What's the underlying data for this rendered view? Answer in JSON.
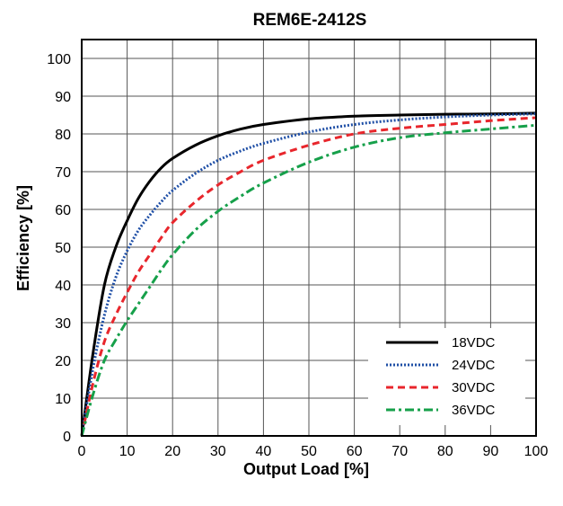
{
  "chart_data": {
    "type": "line",
    "title": "REM6E-2412S",
    "xlabel": "Output Load [%]",
    "ylabel": "Efficiency [%]",
    "xlim": [
      0,
      100
    ],
    "ylim": [
      0,
      105
    ],
    "xticks": [
      0,
      10,
      20,
      30,
      40,
      50,
      60,
      70,
      80,
      90,
      100
    ],
    "yticks": [
      0,
      10,
      20,
      30,
      40,
      50,
      60,
      70,
      80,
      90,
      100
    ],
    "grid": true,
    "legend_position": "bottom-right",
    "series": [
      {
        "name": "18VDC",
        "color": "#000000",
        "style": "solid",
        "x": [
          0,
          2.5,
          5,
          7.5,
          10,
          12.5,
          15,
          17.5,
          20,
          25,
          30,
          35,
          40,
          50,
          60,
          70,
          80,
          90,
          100
        ],
        "y": [
          0,
          22,
          40,
          50,
          57,
          63,
          67.5,
          71,
          73.5,
          77,
          79.5,
          81.3,
          82.5,
          84,
          84.7,
          85,
          85.2,
          85.3,
          85.5
        ]
      },
      {
        "name": "24VDC",
        "color": "#1f4fa6",
        "style": "dotted",
        "x": [
          0,
          2.5,
          5,
          7.5,
          10,
          12.5,
          15,
          17.5,
          20,
          25,
          30,
          35,
          40,
          50,
          60,
          70,
          80,
          90,
          100
        ],
        "y": [
          0,
          18,
          32,
          42,
          49,
          54.5,
          58.5,
          62,
          65,
          69.5,
          73,
          75.5,
          77.5,
          80.5,
          82.5,
          83.7,
          84.5,
          85,
          85.3
        ]
      },
      {
        "name": "30VDC",
        "color": "#e8262c",
        "style": "dashed",
        "x": [
          0,
          2.5,
          5,
          7.5,
          10,
          12.5,
          15,
          17.5,
          20,
          25,
          30,
          35,
          40,
          50,
          60,
          70,
          80,
          90,
          100
        ],
        "y": [
          0,
          14,
          25,
          32,
          38,
          43.5,
          48,
          52.5,
          56.5,
          62,
          66.5,
          70,
          73,
          77,
          80,
          81.5,
          82.5,
          83.5,
          84.3
        ]
      },
      {
        "name": "36VDC",
        "color": "#16a04a",
        "style": "dashdot",
        "x": [
          0,
          2.5,
          5,
          7.5,
          10,
          12.5,
          15,
          17.5,
          20,
          25,
          30,
          35,
          40,
          50,
          60,
          70,
          80,
          90,
          100
        ],
        "y": [
          0,
          11,
          20,
          25.5,
          30.5,
          35,
          39.5,
          44,
          48,
          54.5,
          59.5,
          63.5,
          67,
          72.5,
          76.5,
          79,
          80.3,
          81.3,
          82.3
        ]
      }
    ]
  }
}
